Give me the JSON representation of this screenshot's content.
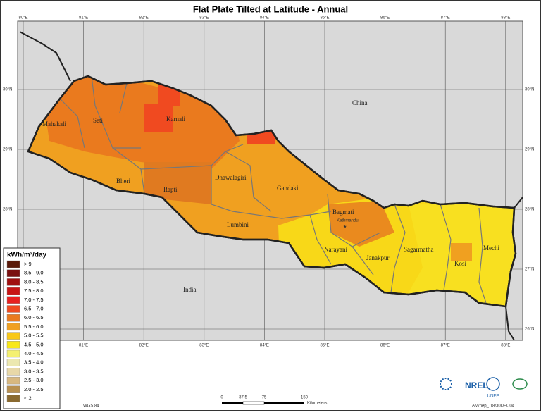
{
  "title": "Flat Plate Tilted at Latitude - Annual",
  "longitudes": [
    "80°E",
    "81°E",
    "82°E",
    "83°E",
    "84°E",
    "85°E",
    "86°E",
    "87°E",
    "88°E"
  ],
  "latitudes": [
    "30°N",
    "29°N",
    "28°N",
    "27°N",
    "26°N"
  ],
  "regions": [
    "Mahakali",
    "Seti",
    "Karnali",
    "Bheri",
    "Rapti",
    "Dhawalagiri",
    "Gandaki",
    "Lumbini",
    "Bagmati",
    "Narayani",
    "Janakpur",
    "Sagarmatha",
    "Kosi",
    "Mechi"
  ],
  "capital": "Kathmandu",
  "countries": [
    "China",
    "India"
  ],
  "legend": {
    "title": "kWh/m²/day",
    "items": [
      {
        "label": "> 9",
        "color": "#5a1a0a"
      },
      {
        "label": "8.5 - 9.0",
        "color": "#7a1010"
      },
      {
        "label": "8.0 - 8.5",
        "color": "#a01010"
      },
      {
        "label": "7.5 - 8.0",
        "color": "#c81515"
      },
      {
        "label": "7.0 - 7.5",
        "color": "#e82020"
      },
      {
        "label": "6.5 - 7.0",
        "color": "#f04a20"
      },
      {
        "label": "6.0 - 6.5",
        "color": "#ea7a1e"
      },
      {
        "label": "5.5 - 6.0",
        "color": "#f0a020"
      },
      {
        "label": "5.0 - 5.5",
        "color": "#f8c818"
      },
      {
        "label": "4.5 - 5.0",
        "color": "#f8e818"
      },
      {
        "label": "4.0 - 4.5",
        "color": "#f4f070"
      },
      {
        "label": "3.5 - 4.0",
        "color": "#ece8b0"
      },
      {
        "label": "3.0 - 3.5",
        "color": "#e8d8a8"
      },
      {
        "label": "2.5 - 3.0",
        "color": "#d8b880"
      },
      {
        "label": "2.0 - 2.5",
        "color": "#b89050"
      },
      {
        "label": "< 2",
        "color": "#8a6a30"
      }
    ]
  },
  "scale": {
    "ticks": [
      "0",
      "37.5",
      "75",
      "150"
    ],
    "unit": "Kilometers"
  },
  "footer": {
    "datum": "WGS 84",
    "code": "AM/nep_ 18/30DEC04"
  },
  "logos": [
    "NREL",
    "UNEP"
  ]
}
